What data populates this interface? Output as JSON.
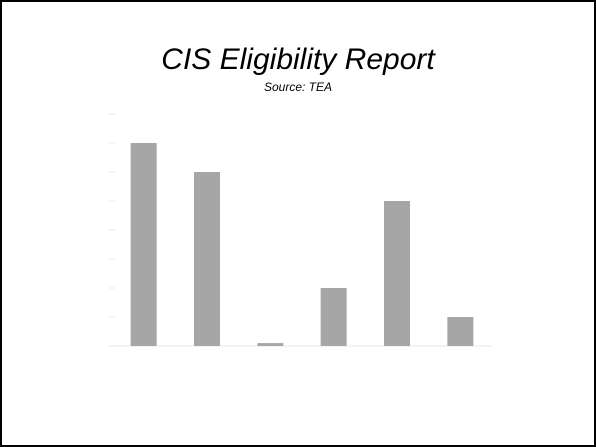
{
  "slide": {
    "title": "CIS Eligibility Report",
    "subtitle": "Source:  TEA"
  },
  "colors": {
    "bar": "#a6a6a6",
    "gridline": "#e8e8e8",
    "tick_label": "#d2d2d2",
    "background": "#ffffff",
    "border": "#000000"
  },
  "chart_data": {
    "type": "bar",
    "title": "",
    "xlabel": "",
    "ylabel": "",
    "categories": [
      "",
      "",
      "",
      "",
      "",
      ""
    ],
    "values": [
      7,
      6,
      0.1,
      2,
      5,
      1
    ],
    "ylim": [
      0,
      8
    ],
    "yticks": [
      "",
      "",
      "",
      "",
      "",
      "",
      "",
      "",
      ""
    ],
    "grid": false
  }
}
